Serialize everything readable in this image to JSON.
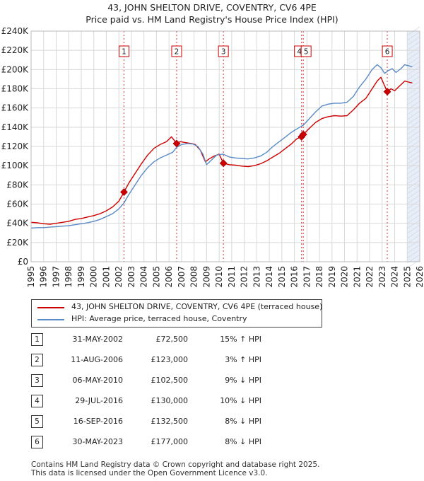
{
  "title_line1": "43, JOHN SHELTON DRIVE, COVENTRY, CV6 4PE",
  "title_line2": "Price paid vs. HM Land Registry's House Price Index (HPI)",
  "colors": {
    "property": "#cc0000",
    "hpi": "#5a8ac6",
    "shade": "#e8eef7",
    "grid": "#d8d8d8"
  },
  "chart_data": {
    "type": "line",
    "ylim": [
      0,
      240000
    ],
    "xlim": [
      1995,
      2026
    ],
    "y_ticks": [
      {
        "value": 0,
        "label": "£0"
      },
      {
        "value": 20000,
        "label": "£20K"
      },
      {
        "value": 40000,
        "label": "£40K"
      },
      {
        "value": 60000,
        "label": "£60K"
      },
      {
        "value": 80000,
        "label": "£80K"
      },
      {
        "value": 100000,
        "label": "£100K"
      },
      {
        "value": 120000,
        "label": "£120K"
      },
      {
        "value": 140000,
        "label": "£140K"
      },
      {
        "value": 160000,
        "label": "£160K"
      },
      {
        "value": 180000,
        "label": "£180K"
      },
      {
        "value": 200000,
        "label": "£200K"
      },
      {
        "value": 220000,
        "label": "£220K"
      },
      {
        "value": 240000,
        "label": "£240K"
      }
    ],
    "x_ticks": [
      "1995",
      "1996",
      "1997",
      "1998",
      "1999",
      "2000",
      "2001",
      "2002",
      "2003",
      "2004",
      "2005",
      "2006",
      "2007",
      "2008",
      "2009",
      "2010",
      "2011",
      "2012",
      "2013",
      "2014",
      "2015",
      "2016",
      "2017",
      "2018",
      "2019",
      "2020",
      "2021",
      "2022",
      "2023",
      "2024",
      "2025",
      "2026"
    ],
    "shaded_region": [
      2025.0,
      2026.0
    ],
    "series": [
      {
        "name": "43, JOHN SHELTON DRIVE, COVENTRY, CV6 4PE (terraced house)",
        "key": "property",
        "x": [
          1995.0,
          1995.5,
          1996.0,
          1996.5,
          1997.0,
          1997.5,
          1998.0,
          1998.5,
          1999.0,
          1999.5,
          2000.0,
          2000.5,
          2001.0,
          2001.5,
          2002.0,
          2002.41,
          2002.8,
          2003.3,
          2003.8,
          2004.3,
          2004.8,
          2005.3,
          2005.8,
          2006.2,
          2006.61,
          2006.9,
          2007.3,
          2007.8,
          2008.1,
          2008.5,
          2008.9,
          2009.2,
          2009.6,
          2010.0,
          2010.34,
          2010.8,
          2011.3,
          2011.8,
          2012.3,
          2012.8,
          2013.3,
          2013.8,
          2014.3,
          2014.8,
          2015.3,
          2015.8,
          2016.2,
          2016.57,
          2016.71,
          2017.2,
          2017.7,
          2018.2,
          2018.7,
          2019.2,
          2019.7,
          2020.2,
          2020.7,
          2021.2,
          2021.7,
          2022.2,
          2022.6,
          2022.9,
          2023.1,
          2023.41,
          2023.7,
          2024.0,
          2024.4,
          2024.8,
          2025.1,
          2025.4
        ],
        "y": [
          41000,
          40500,
          39500,
          39000,
          40000,
          41000,
          42000,
          44000,
          45000,
          46500,
          48000,
          50000,
          53000,
          57000,
          63000,
          72500,
          82000,
          92000,
          102000,
          111000,
          118000,
          122000,
          125000,
          130000,
          123000,
          125000,
          124000,
          123000,
          122000,
          116000,
          104000,
          107000,
          110000,
          112000,
          102500,
          101000,
          100500,
          99500,
          99000,
          100000,
          102000,
          105000,
          109000,
          113000,
          118000,
          123000,
          128000,
          130000,
          132500,
          139000,
          145000,
          149000,
          151000,
          152000,
          151500,
          152000,
          158000,
          165000,
          170000,
          180000,
          188000,
          192000,
          186000,
          177000,
          180000,
          178000,
          183000,
          188000,
          187000,
          186000
        ]
      },
      {
        "name": "HPI: Average price, terraced house, Coventry",
        "key": "hpi",
        "x": [
          1995.0,
          1995.5,
          1996.0,
          1996.5,
          1997.0,
          1997.5,
          1998.0,
          1998.5,
          1999.0,
          1999.5,
          2000.0,
          2000.5,
          2001.0,
          2001.5,
          2002.0,
          2002.4,
          2002.8,
          2003.3,
          2003.8,
          2004.3,
          2004.8,
          2005.3,
          2005.8,
          2006.3,
          2006.6,
          2007.0,
          2007.5,
          2007.9,
          2008.3,
          2008.7,
          2009.0,
          2009.4,
          2009.8,
          2010.3,
          2010.8,
          2011.3,
          2011.8,
          2012.3,
          2012.8,
          2013.3,
          2013.8,
          2014.3,
          2014.8,
          2015.3,
          2015.8,
          2016.3,
          2016.7,
          2017.2,
          2017.7,
          2018.2,
          2018.7,
          2019.2,
          2019.7,
          2020.2,
          2020.7,
          2021.2,
          2021.7,
          2022.2,
          2022.6,
          2022.9,
          2023.2,
          2023.5,
          2023.8,
          2024.1,
          2024.5,
          2024.8,
          2025.1,
          2025.4
        ],
        "y": [
          35000,
          35500,
          35500,
          36000,
          36500,
          37000,
          37500,
          38500,
          39500,
          40500,
          42000,
          44000,
          47000,
          50000,
          55000,
          61000,
          70000,
          80000,
          90000,
          98000,
          104000,
          108000,
          111000,
          114000,
          119000,
          122000,
          123000,
          122500,
          120000,
          112000,
          101000,
          106000,
          111000,
          112000,
          109000,
          108000,
          107500,
          107000,
          108000,
          110000,
          114000,
          120000,
          125000,
          130000,
          135000,
          139000,
          142000,
          149000,
          156000,
          162000,
          164000,
          165000,
          165000,
          166000,
          172000,
          182000,
          190000,
          200000,
          205000,
          202000,
          196000,
          199000,
          201000,
          197000,
          201000,
          205000,
          204000,
          203000
        ]
      }
    ],
    "sales": [
      {
        "marker": "1",
        "x": 2002.41,
        "y": 72500
      },
      {
        "marker": "2",
        "x": 2006.61,
        "y": 123000
      },
      {
        "marker": "3",
        "x": 2010.34,
        "y": 102500
      },
      {
        "marker": "4",
        "x": 2016.57,
        "y": 130000
      },
      {
        "marker": "5",
        "x": 2016.71,
        "y": 132500
      },
      {
        "marker": "6",
        "x": 2023.41,
        "y": 177000
      }
    ]
  },
  "legend": {
    "property_label": "43, JOHN SHELTON DRIVE, COVENTRY, CV6 4PE (terraced house)",
    "hpi_label": "HPI: Average price, terraced house, Coventry"
  },
  "sales_table": [
    {
      "num": "1",
      "date": "31-MAY-2002",
      "price": "£72,500",
      "hpi": "15% ↑ HPI"
    },
    {
      "num": "2",
      "date": "11-AUG-2006",
      "price": "£123,000",
      "hpi": "3% ↑ HPI"
    },
    {
      "num": "3",
      "date": "06-MAY-2010",
      "price": "£102,500",
      "hpi": "9% ↓ HPI"
    },
    {
      "num": "4",
      "date": "29-JUL-2016",
      "price": "£130,000",
      "hpi": "10% ↓ HPI"
    },
    {
      "num": "5",
      "date": "16-SEP-2016",
      "price": "£132,500",
      "hpi": "8% ↓ HPI"
    },
    {
      "num": "6",
      "date": "30-MAY-2023",
      "price": "£177,000",
      "hpi": "8% ↓ HPI"
    }
  ],
  "footer_line1": "Contains HM Land Registry data © Crown copyright and database right 2025.",
  "footer_line2": "This data is licensed under the Open Government Licence v3.0."
}
